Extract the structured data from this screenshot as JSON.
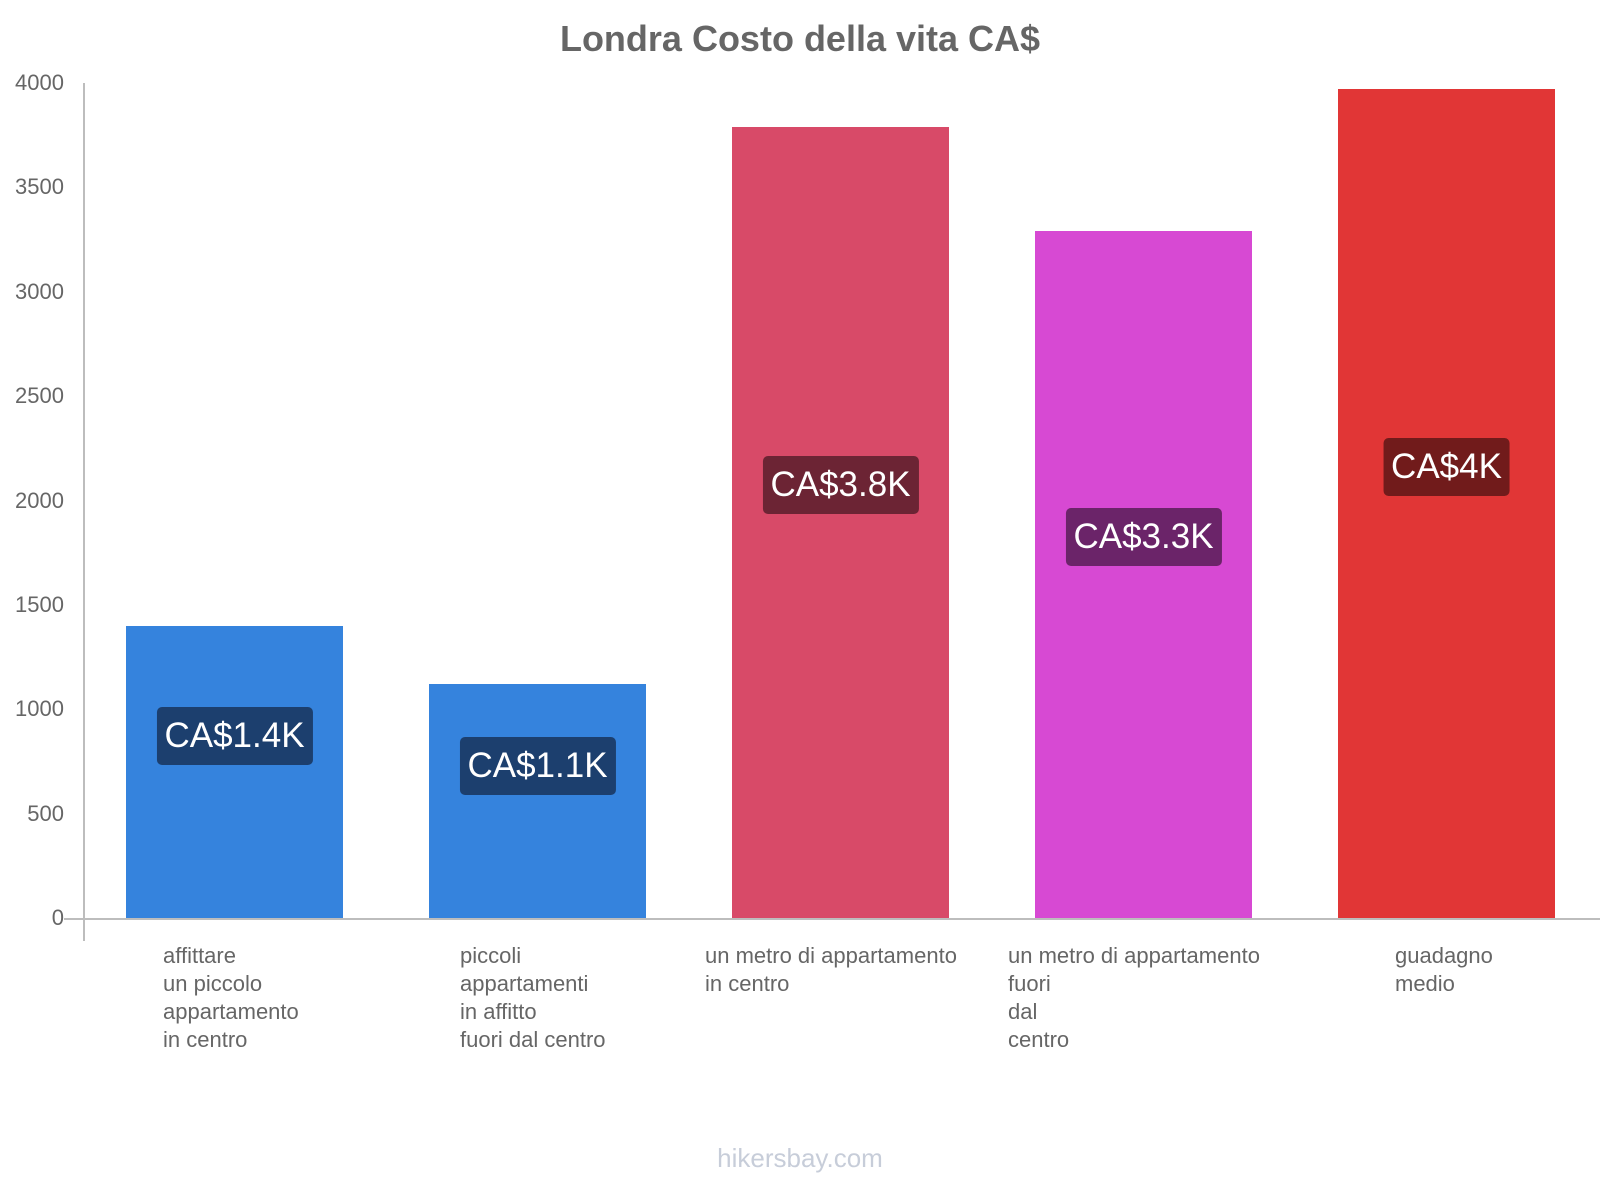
{
  "title": "Londra Costo della vita CA$",
  "footer": "hikersbay.com",
  "y_ticks": [
    "4000",
    "3500",
    "3000",
    "2500",
    "2000",
    "1500",
    "1000",
    "500",
    "0"
  ],
  "bars": [
    {
      "label": "affittare\nun piccolo\nappartamento\nin centro",
      "value_label": "CA$1.4K",
      "color": "#3583dd",
      "label_bg": "#1c3f6e"
    },
    {
      "label": "piccoli\nappartamenti\nin affitto\nfuori dal centro",
      "value_label": "CA$1.1K",
      "color": "#3583dd",
      "label_bg": "#1c3f6e"
    },
    {
      "label": "un metro di appartamento\nin centro",
      "value_label": "CA$3.8K",
      "color": "#d84a68",
      "label_bg": "#6c2434"
    },
    {
      "label": "un metro di appartamento\nfuori\ndal\ncentro",
      "value_label": "CA$3.3K",
      "color": "#d749d3",
      "label_bg": "#6b2469"
    },
    {
      "label": "guadagno\nmedio",
      "value_label": "CA$4K",
      "color": "#e13636",
      "label_bg": "#711b1b"
    }
  ],
  "chart_data": {
    "type": "bar",
    "title": "Londra Costo della vita CA$",
    "categories": [
      "affittare un piccolo appartamento in centro",
      "piccoli appartamenti in affitto fuori dal centro",
      "un metro di appartamento in centro",
      "un metro di appartamento fuori dal centro",
      "guadagno medio"
    ],
    "values": [
      1400,
      1120,
      3790,
      3290,
      3970
    ],
    "data_labels": [
      "CA$1.4K",
      "CA$1.1K",
      "CA$3.8K",
      "CA$3.3K",
      "CA$4K"
    ],
    "colors": [
      "#3583dd",
      "#3583dd",
      "#d84a68",
      "#d749d3",
      "#e13636"
    ],
    "xlabel": "",
    "ylabel": "",
    "ylim": [
      0,
      4000
    ],
    "yticks": [
      0,
      500,
      1000,
      1500,
      2000,
      2500,
      3000,
      3500,
      4000
    ],
    "grid": false,
    "legend": null
  }
}
